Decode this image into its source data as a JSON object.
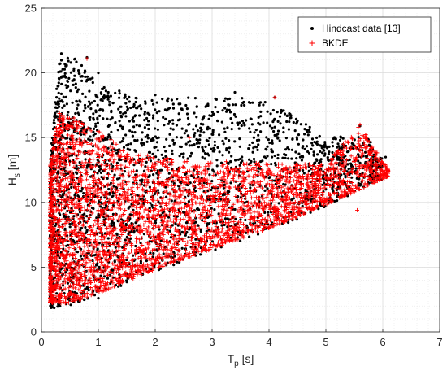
{
  "chart_data": {
    "type": "scatter",
    "xlabel": "T",
    "xlabel_sub": "p",
    "xlabel_unit": "[s]",
    "ylabel": "H",
    "ylabel_sub": "s",
    "ylabel_unit": "[m]",
    "xlim": [
      0,
      7
    ],
    "ylim": [
      0,
      25
    ],
    "x_ticks": [
      "0",
      "1",
      "2",
      "3",
      "4",
      "5",
      "6",
      "7"
    ],
    "y_ticks": [
      "0",
      "5",
      "10",
      "15",
      "20",
      "25"
    ],
    "grid": true,
    "minor_grid": true,
    "legend_position": "top-right",
    "series": [
      {
        "name": "Hindcast data [13]",
        "marker": "dot",
        "color": "#000000",
        "region": {
          "lower_boundary": [
            [
              0.15,
              1.8
            ],
            [
              0.5,
              2.0
            ],
            [
              1.0,
              2.8
            ],
            [
              2.0,
              4.6
            ],
            [
              3.0,
              6.2
            ],
            [
              4.0,
              7.8
            ],
            [
              5.0,
              9.6
            ],
            [
              6.0,
              11.8
            ]
          ],
          "upper_boundary": [
            [
              0.15,
              13.0
            ],
            [
              0.3,
              21.0
            ],
            [
              0.6,
              21.3
            ],
            [
              1.0,
              19.0
            ],
            [
              2.0,
              18.0
            ],
            [
              3.0,
              18.2
            ],
            [
              4.0,
              18.0
            ],
            [
              5.0,
              15.0
            ],
            [
              5.7,
              15.2
            ],
            [
              6.05,
              13.0
            ]
          ]
        },
        "sample_points": [
          [
            0.35,
            21.5
          ],
          [
            0.8,
            21.2
          ],
          [
            1.0,
            20.0
          ],
          [
            2.0,
            18.3
          ],
          [
            3.4,
            18.5
          ],
          [
            4.1,
            18.1
          ],
          [
            5.6,
            15.9
          ],
          [
            6.05,
            13.5
          ],
          [
            0.2,
            1.9
          ],
          [
            1.0,
            2.6
          ]
        ]
      },
      {
        "name": "BKDE",
        "marker": "plus",
        "color": "#ff0000",
        "region": {
          "lower_boundary": [
            [
              0.15,
              2.2
            ],
            [
              0.5,
              2.2
            ],
            [
              1.0,
              3.0
            ],
            [
              2.0,
              4.8
            ],
            [
              3.0,
              6.4
            ],
            [
              4.0,
              8.0
            ],
            [
              5.0,
              9.8
            ],
            [
              6.1,
              12.0
            ]
          ],
          "upper_boundary": [
            [
              0.15,
              13.0
            ],
            [
              0.3,
              17.0
            ],
            [
              0.6,
              16.5
            ],
            [
              1.0,
              15.5
            ],
            [
              1.5,
              14.0
            ],
            [
              2.0,
              13.5
            ],
            [
              3.0,
              13.2
            ],
            [
              4.0,
              13.0
            ],
            [
              5.0,
              13.0
            ],
            [
              5.6,
              16.0
            ],
            [
              6.1,
              12.5
            ]
          ]
        },
        "sample_points": [
          [
            0.8,
            21.1
          ],
          [
            4.1,
            18.1
          ],
          [
            5.6,
            16.0
          ],
          [
            6.0,
            12.2
          ],
          [
            5.55,
            9.4
          ],
          [
            4.3,
            11.6
          ],
          [
            3.2,
            12.9
          ],
          [
            2.6,
            15.0
          ]
        ]
      }
    ]
  }
}
